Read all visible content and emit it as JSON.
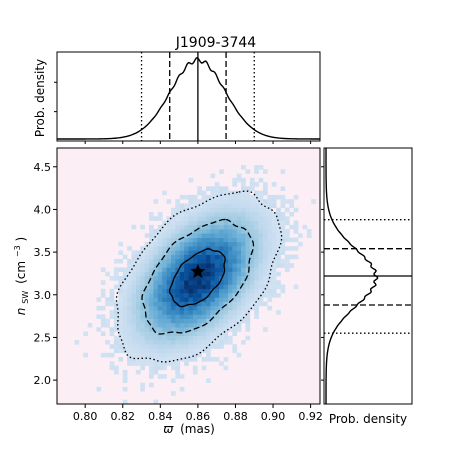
{
  "chart_data": {
    "type": "heatmap",
    "subtype": "corner-plot-2d-posterior-with-marginals",
    "title": "J1909-3744",
    "colormap": "Blues",
    "background_color": "#fbeef5",
    "joint": {
      "x_label_main": "ϖ",
      "x_label_unit": "(mas)",
      "y_label_main": "n",
      "y_label_sub": "SW",
      "y_label_unit": "(cm",
      "y_label_sup": "−3",
      "x_range": [
        0.785,
        0.925
      ],
      "y_range": [
        1.72,
        4.72
      ],
      "x_ticks": [
        "0.80",
        "0.82",
        "0.84",
        "0.86",
        "0.88",
        "0.90",
        "0.92"
      ],
      "y_ticks": [
        "2.0",
        "2.5",
        "3.0",
        "3.5",
        "4.0",
        "4.5"
      ],
      "mean": [
        0.86,
        3.2
      ],
      "std": [
        0.0145,
        0.33
      ],
      "correlation": 0.48,
      "star_marker": [
        0.86,
        3.27
      ],
      "contour_levels_sigma": [
        1,
        2,
        3
      ],
      "contour_styles": [
        "solid",
        "dashed",
        "dotted"
      ]
    },
    "x_marginal": {
      "ylabel": "Prob. density",
      "median": 0.86,
      "lines": [
        {
          "x": 0.83,
          "style": "dotted"
        },
        {
          "x": 0.845,
          "style": "dashed"
        },
        {
          "x": 0.86,
          "style": "solid"
        },
        {
          "x": 0.875,
          "style": "dashed"
        },
        {
          "x": 0.89,
          "style": "dotted"
        }
      ]
    },
    "y_marginal": {
      "xlabel": "Prob. density",
      "median": 3.22,
      "lines": [
        {
          "y": 2.55,
          "style": "dotted"
        },
        {
          "y": 2.88,
          "style": "dashed"
        },
        {
          "y": 3.22,
          "style": "solid"
        },
        {
          "y": 3.54,
          "style": "dashed"
        },
        {
          "y": 3.88,
          "style": "dotted"
        }
      ]
    }
  }
}
